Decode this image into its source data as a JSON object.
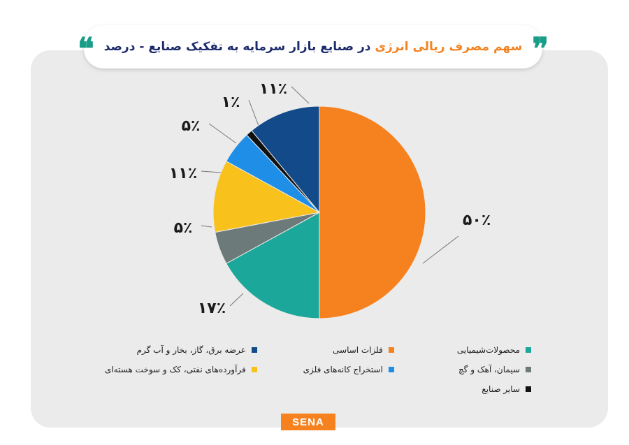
{
  "header": {
    "title_accent": "سهم مصرف ریالی انرژی",
    "title_main": "در صنایع بازار سرمایه به تفکیک صنایع - درصد",
    "quote_open": "❞",
    "quote_close": "❝"
  },
  "logo": {
    "text": "SENA"
  },
  "colors": {
    "orange": "#f5821f",
    "teal": "#1ba799",
    "gray": "#6c7a7a",
    "yellow": "#f9c11b",
    "blue": "#1e8ee6",
    "black": "#111111",
    "navy": "#124a8a"
  },
  "chart_data": {
    "type": "pie",
    "title": "سهم مصرف ریالی انرژی در صنایع بازار سرمایه به تفکیک صنایع - درصد",
    "slices": [
      {
        "label": "فلزات اساسی",
        "value": 50,
        "display": "۵۰٪",
        "color": "#f5821f"
      },
      {
        "label": "محصولات شیمیایی",
        "value": 17,
        "display": "۱۷٪",
        "color": "#1ba799"
      },
      {
        "label": "سیمان، آهک و گچ",
        "value": 5,
        "display": "۵٪",
        "color": "#6c7a7a"
      },
      {
        "label": "فرآورده‌های نفتی، کک و سوخت هسته‌ای",
        "value": 11,
        "display": "۱۱٪",
        "color": "#f9c11b"
      },
      {
        "label": "استخراج کانه‌های فلزی",
        "value": 5,
        "display": "۵٪",
        "color": "#1e8ee6"
      },
      {
        "label": "سایر صنایع",
        "value": 1,
        "display": "۱٪",
        "color": "#111111"
      },
      {
        "label": "عرضه برق، گاز، بخار و آب گرم",
        "value": 11,
        "display": "۱۱٪",
        "color": "#124a8a"
      }
    ],
    "legend": [
      {
        "label": "محصولات‌شیمیایی",
        "color": "#1ba799"
      },
      {
        "label": "فلزات اساسی",
        "color": "#f5821f"
      },
      {
        "label": "عرضه برق، گاز، بخار و آب گرم",
        "color": "#124a8a"
      },
      {
        "label": "سیمان، آهک و گچ",
        "color": "#6c7a7a"
      },
      {
        "label": "استخراج کانه‌های فلزی",
        "color": "#1e8ee6"
      },
      {
        "label": "فرآورده‌های نفتی، کک و سوخت هسته‌ای",
        "color": "#f9c11b"
      },
      {
        "label": "سایر صنایع",
        "color": "#111111"
      }
    ],
    "legend_position": "bottom"
  }
}
